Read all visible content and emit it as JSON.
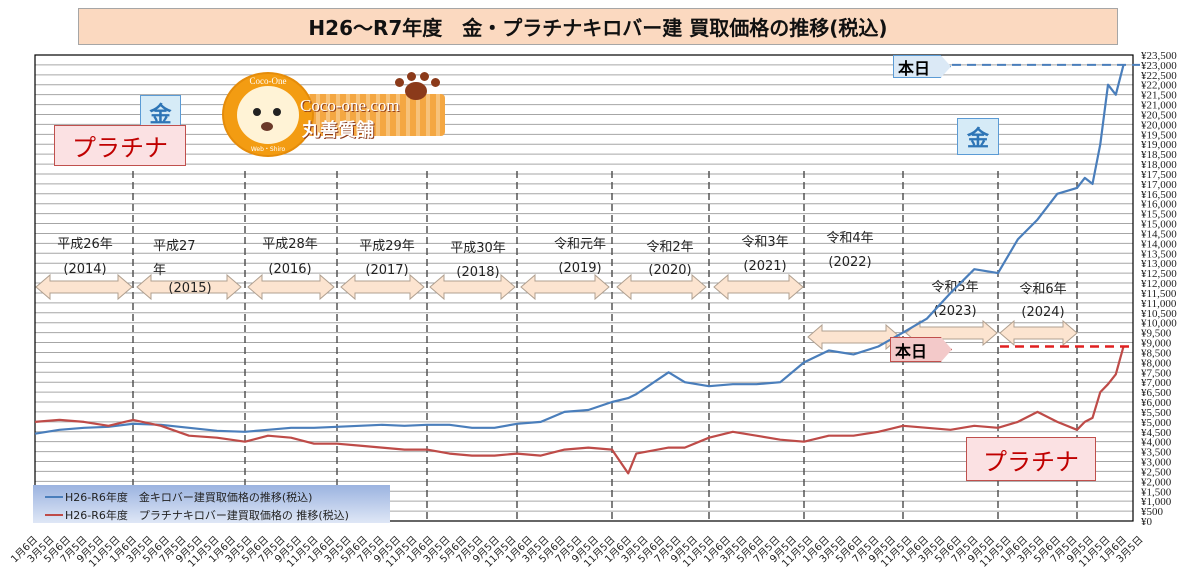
{
  "title": "H26～R7年度　金・プラチナキロバー建 買取価格の推移(税込)",
  "labels": {
    "gold": "金",
    "platinum": "プラチナ",
    "today": "本日"
  },
  "logo": {
    "circle_text": "Coco-One",
    "site": "Coco-one.com",
    "shop": "丸善質舗",
    "small_text": "Web・Shiro"
  },
  "colors": {
    "gold": "#4a7ebb",
    "platinum": "#be4b48",
    "title_bg": "#fbd9c0",
    "arrow_fill": "#fce4d0"
  },
  "chart_data": {
    "type": "line",
    "title": "H26～R7年度　金・プラチナキロバー建 買取価格の推移(税込)",
    "ylim": [
      0,
      23500
    ],
    "y_tick_step": 500,
    "y_tick_format": "¥#,##0",
    "grid": "horizontal",
    "legend_position": "bottom-left",
    "x_tick_label_pattern": [
      "1月6日",
      "3月5日",
      "5月6日",
      "7月5日",
      "9月5日",
      "11月5日"
    ],
    "eras": [
      {
        "label": "平成26年",
        "year": "(2014)"
      },
      {
        "label": "平成27年",
        "year": "(2015)"
      },
      {
        "label": "平成28年",
        "year": "(2016)"
      },
      {
        "label": "平成29年",
        "year": "(2017)"
      },
      {
        "label": "平成30年",
        "year": "(2018)"
      },
      {
        "label": "令和元年",
        "year": "(2019)"
      },
      {
        "label": "令和2年",
        "year": "(2020)"
      },
      {
        "label": "令和3年",
        "year": "(2021)"
      },
      {
        "label": "令和4年",
        "year": "(2022)"
      },
      {
        "label": "令和5年",
        "year": "(2023)"
      },
      {
        "label": "令和6年",
        "year": "(2024)"
      }
    ],
    "x": [
      "2014-01",
      "2014-04",
      "2014-07",
      "2014-10",
      "2015-01",
      "2015-04",
      "2015-07",
      "2015-10",
      "2016-01",
      "2016-04",
      "2016-07",
      "2016-10",
      "2017-01",
      "2017-04",
      "2017-07",
      "2017-10",
      "2018-01",
      "2018-04",
      "2018-07",
      "2018-10",
      "2019-01",
      "2019-04",
      "2019-07",
      "2019-10",
      "2020-01",
      "2020-03",
      "2020-04",
      "2020-08",
      "2020-10",
      "2021-01",
      "2021-04",
      "2021-07",
      "2021-10",
      "2022-01",
      "2022-04",
      "2022-07",
      "2022-10",
      "2023-01",
      "2023-04",
      "2023-07",
      "2023-10",
      "2024-01",
      "2024-04",
      "2024-07",
      "2024-10",
      "2025-01",
      "2025-02",
      "2025-03",
      "2025-04",
      "2025-05",
      "2025-06",
      "2025-07"
    ],
    "series": [
      {
        "name": "H26-R6年度　金キロバー建買取価格の推移(税込)",
        "values": [
          4400,
          4600,
          4700,
          4750,
          4900,
          4850,
          4700,
          4550,
          4500,
          4600,
          4700,
          4700,
          4750,
          4800,
          4850,
          4800,
          4850,
          4850,
          4700,
          4700,
          4900,
          5000,
          5500,
          5600,
          6000,
          6200,
          6400,
          7500,
          7000,
          6800,
          6900,
          6900,
          7000,
          8000,
          8600,
          8400,
          8800,
          9500,
          10200,
          11500,
          12700,
          12500,
          14200,
          15200,
          16500,
          16800,
          17300,
          17000,
          19000,
          22000,
          21500,
          23000
        ]
      },
      {
        "name": "H26-R6年度　プラチナキロバー建買取価格の 推移(税込)",
        "values": [
          5000,
          5100,
          5000,
          4800,
          5100,
          4800,
          4300,
          4200,
          4000,
          4300,
          4200,
          3900,
          3900,
          3800,
          3700,
          3600,
          3600,
          3400,
          3300,
          3300,
          3400,
          3300,
          3600,
          3700,
          3600,
          2400,
          3400,
          3700,
          3700,
          4200,
          4500,
          4300,
          4100,
          4000,
          4300,
          4300,
          4500,
          4800,
          4700,
          4600,
          4800,
          4700,
          5000,
          5500,
          5000,
          4600,
          5000,
          5200,
          6500,
          6900,
          7400,
          8800
        ]
      }
    ]
  }
}
